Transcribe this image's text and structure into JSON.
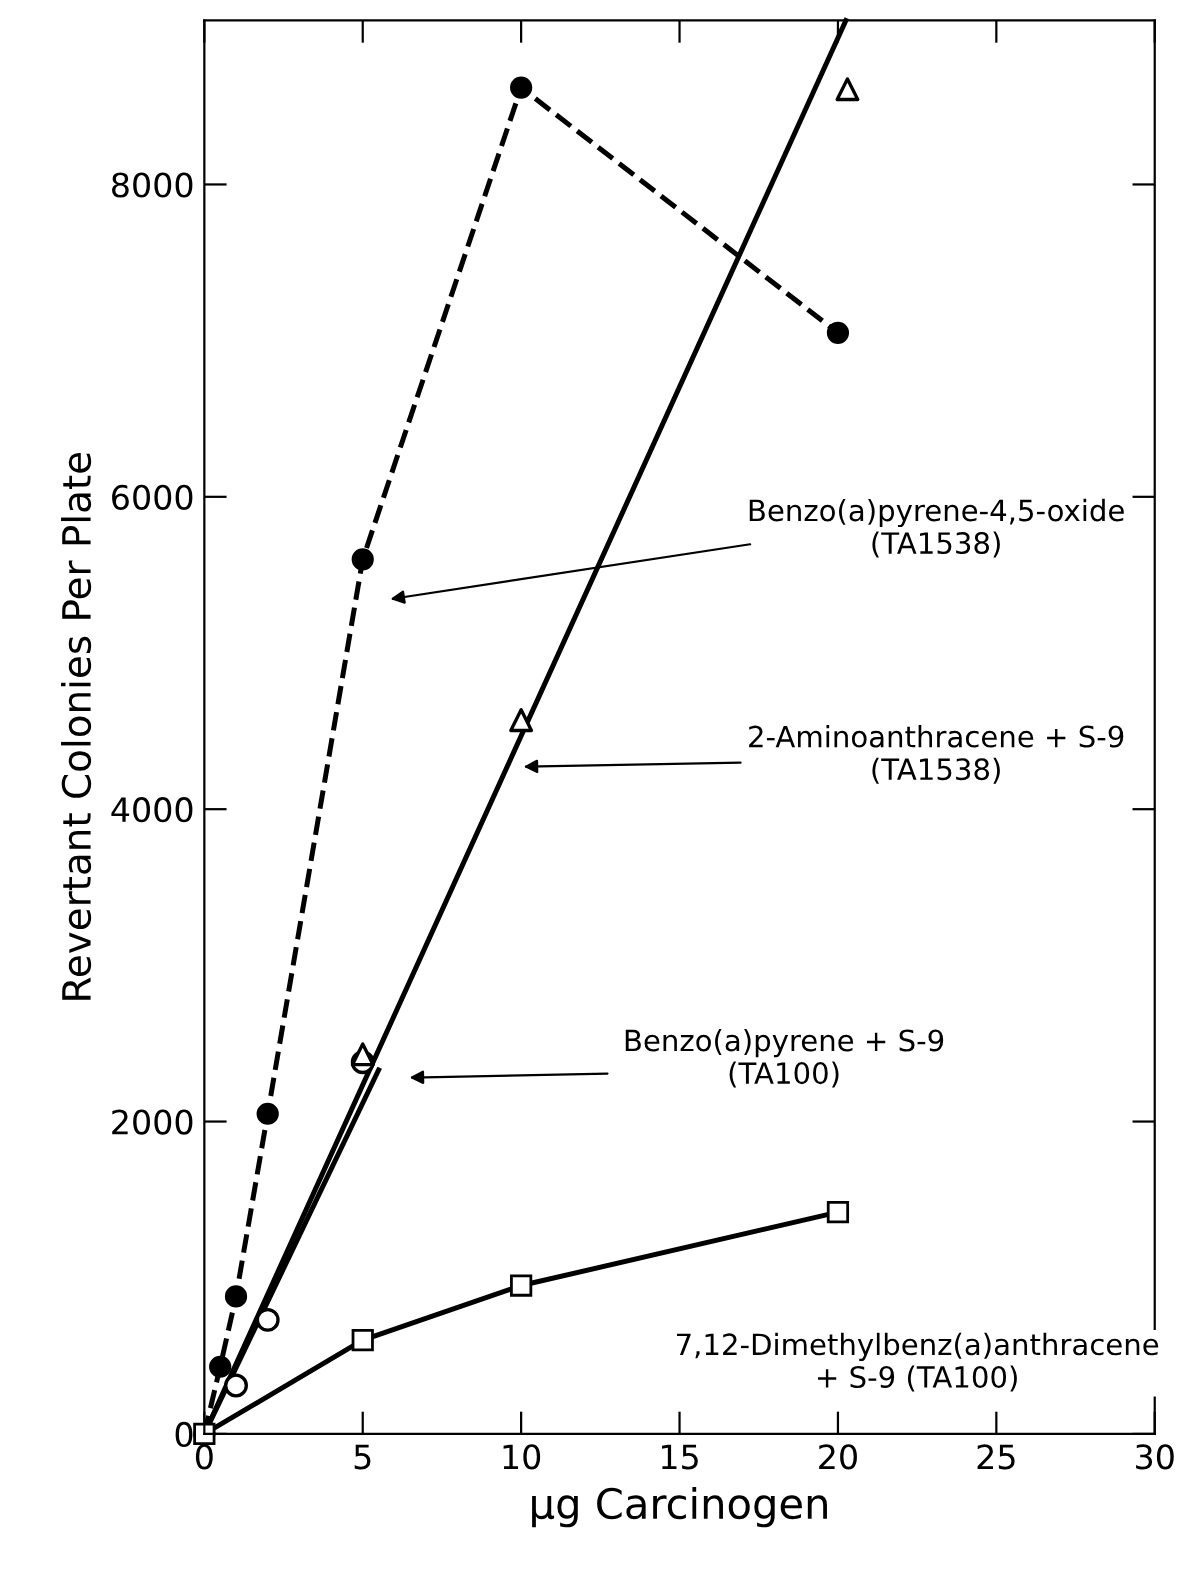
{
  "chart_data": {
    "type": "line",
    "xlabel": "μg Carcinogen",
    "ylabel": "Revertant Colonies Per Plate",
    "xlim": [
      0,
      30
    ],
    "xticks": [
      0,
      5,
      10,
      15,
      20,
      25,
      30
    ],
    "ylim": [
      0,
      9050
    ],
    "yticks": [
      0,
      2000,
      4000,
      6000,
      8000
    ],
    "grid": false,
    "legend": false,
    "series": [
      {
        "color": "#000000",
        "marker": "circle",
        "line_style": "dashed",
        "x": [
          0,
          0.5,
          1,
          2,
          5,
          10,
          20
        ],
        "values": [
          0,
          430,
          880,
          2050,
          5600,
          8620,
          7050
        ]
      },
      {
        "type": "scatter",
        "color": "#000000",
        "marker": "triangle",
        "x": [
          5,
          10,
          20.3
        ],
        "values": [
          2430,
          4570,
          8610
        ]
      },
      {
        "color": "#000000",
        "line_style": "solid",
        "x": [
          0,
          20.25
        ],
        "values": [
          0,
          9050
        ]
      },
      {
        "type": "scatter",
        "color": "#000000",
        "marker": "circle",
        "x": [
          1,
          2,
          5
        ],
        "values": [
          310,
          730,
          2380
        ]
      },
      {
        "color": "#000000",
        "line_style": "solid",
        "x": [
          0,
          5.5
        ],
        "values": [
          0,
          2330
        ]
      },
      {
        "color": "#000000",
        "marker": "square",
        "line_style": "solid",
        "x": [
          0,
          5,
          10,
          20
        ],
        "values": [
          0,
          600,
          950,
          1420
        ]
      }
    ],
    "annotations": [
      "Benzo(a)pyrene-4,5-oxide\n(TA1538)",
      "2-Aminoanthracene + S-9\n(TA1538)",
      "Benzo(a)pyrene + S-9\n(TA100)",
      "7,12-Dimethylbenz(a)anthracene\n+ S-9 (TA100)"
    ]
  }
}
